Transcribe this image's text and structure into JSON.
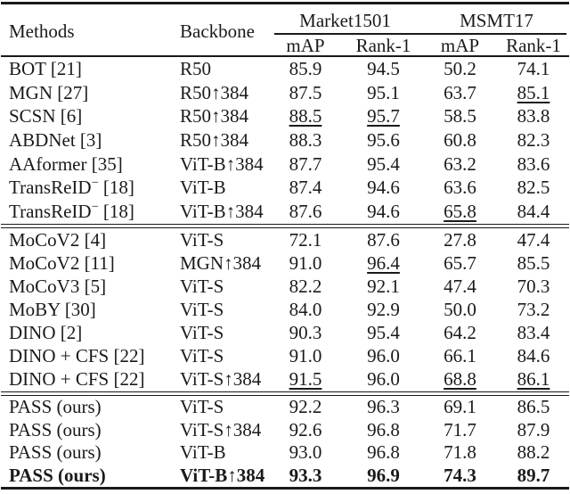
{
  "table": {
    "header": {
      "methods_label": "Methods",
      "backbone_label": "Backbone",
      "group1_label": "Market1501",
      "group2_label": "MSMT17",
      "sub_labels": [
        "mAP",
        "Rank-1",
        "mAP",
        "Rank-1"
      ]
    },
    "sections": [
      {
        "rows": [
          {
            "method": "BOT [21]",
            "backbone": "R50",
            "vals": [
              "85.9",
              "94.5",
              "50.2",
              "74.1"
            ]
          },
          {
            "method": "MGN [27]",
            "backbone": "R50↑384",
            "vals": [
              "87.5",
              "95.1",
              "63.7",
              "85.1"
            ]
          },
          {
            "method": "SCSN [6]",
            "backbone": "R50↑384",
            "vals": [
              "88.5",
              "95.7",
              "58.5",
              "83.8"
            ]
          },
          {
            "method": "ABDNet [3]",
            "backbone": "R50↑384",
            "vals": [
              "88.3",
              "95.6",
              "60.8",
              "82.3"
            ]
          },
          {
            "method": "AAformer [35]",
            "backbone": "ViT-B↑384",
            "vals": [
              "87.7",
              "95.4",
              "63.2",
              "83.6"
            ]
          },
          {
            "method_name": "TransReID",
            "method_sup": "−",
            "method_ref": "[18]",
            "backbone": "ViT-B",
            "vals": [
              "87.4",
              "94.6",
              "63.6",
              "82.5"
            ]
          },
          {
            "method_name": "TransReID",
            "method_sup": "−",
            "method_ref": "[18]",
            "backbone": "ViT-B↑384",
            "vals": [
              "87.6",
              "94.6",
              "65.8",
              "84.4"
            ]
          }
        ]
      },
      {
        "rows": [
          {
            "method": "MoCoV2 [4]",
            "backbone": "ViT-S",
            "vals": [
              "72.1",
              "87.6",
              "27.8",
              "47.4"
            ]
          },
          {
            "method": "MoCoV2 [11]",
            "backbone": "MGN↑384",
            "vals": [
              "91.0",
              "96.4",
              "65.7",
              "85.5"
            ]
          },
          {
            "method": "MoCoV3 [5]",
            "backbone": "ViT-S",
            "vals": [
              "82.2",
              "92.1",
              "47.4",
              "70.3"
            ]
          },
          {
            "method": "MoBY [30]",
            "backbone": "ViT-S",
            "vals": [
              "84.0",
              "92.9",
              "50.0",
              "73.2"
            ]
          },
          {
            "method": "DINO [2]",
            "backbone": "ViT-S",
            "vals": [
              "90.3",
              "95.4",
              "64.2",
              "83.4"
            ]
          },
          {
            "method": "DINO + CFS [22]",
            "backbone": "ViT-S",
            "vals": [
              "91.0",
              "96.0",
              "66.1",
              "84.6"
            ]
          },
          {
            "method": "DINO + CFS [22]",
            "backbone": "ViT-S↑384",
            "vals": [
              "91.5",
              "96.0",
              "68.8",
              "86.1"
            ]
          }
        ]
      },
      {
        "rows": [
          {
            "method": "PASS (ours)",
            "backbone": "ViT-S",
            "vals": [
              "92.2",
              "96.3",
              "69.1",
              "86.5"
            ]
          },
          {
            "method": "PASS (ours)",
            "backbone": "ViT-S↑384",
            "vals": [
              "92.6",
              "96.8",
              "71.7",
              "87.9"
            ]
          },
          {
            "method": "PASS (ours)",
            "backbone": "ViT-B",
            "vals": [
              "93.0",
              "96.8",
              "71.8",
              "88.2"
            ]
          },
          {
            "method": "PASS (ours)",
            "backbone": "ViT-B↑384",
            "vals": [
              "93.3",
              "96.9",
              "74.3",
              "89.7"
            ]
          }
        ]
      }
    ]
  }
}
